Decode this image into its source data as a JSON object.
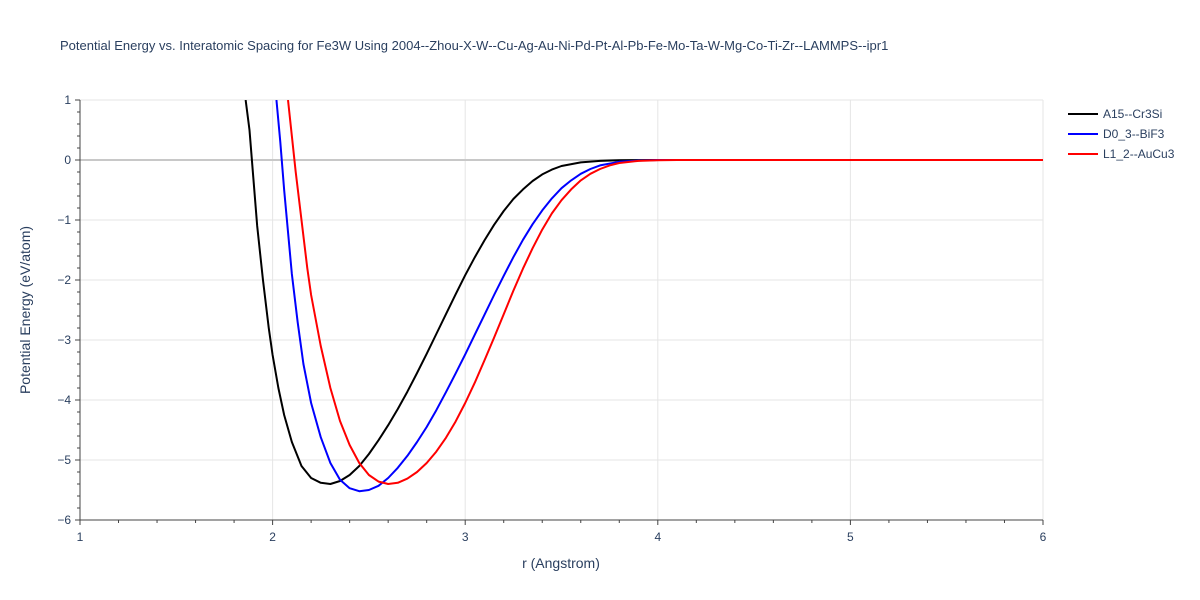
{
  "chart_data": {
    "type": "line",
    "title": "Potential Energy vs. Interatomic Spacing for Fe3W Using 2004--Zhou-X-W--Cu-Ag-Au-Ni-Pd-Pt-Al-Pb-Fe-Mo-Ta-W-Mg-Co-Ti-Zr--LAMMPS--ipr1",
    "xlabel": "r (Angstrom)",
    "ylabel": "Potential Energy (eV/atom)",
    "xlim": [
      1,
      6
    ],
    "ylim": [
      -6,
      1
    ],
    "xticks": [
      1,
      2,
      3,
      4,
      5,
      6
    ],
    "xtick_labels": [
      "1",
      "2",
      "3",
      "4",
      "5",
      "6"
    ],
    "yticks": [
      1,
      0,
      -1,
      -2,
      -3,
      -4,
      -5,
      -6
    ],
    "ytick_labels": [
      "1",
      "0",
      "−1",
      "−2",
      "−3",
      "−4",
      "−5",
      "−6"
    ],
    "grid": true,
    "legend_position": "top-right",
    "series": [
      {
        "name": "A15--Cr3Si",
        "color": "#000000",
        "x": [
          1.86,
          1.88,
          1.9,
          1.92,
          1.95,
          1.98,
          2.0,
          2.03,
          2.06,
          2.1,
          2.15,
          2.2,
          2.25,
          2.3,
          2.35,
          2.4,
          2.45,
          2.5,
          2.55,
          2.6,
          2.65,
          2.7,
          2.75,
          2.8,
          2.85,
          2.9,
          2.95,
          3.0,
          3.05,
          3.1,
          3.15,
          3.2,
          3.25,
          3.3,
          3.35,
          3.4,
          3.45,
          3.5,
          3.6,
          3.7,
          3.8,
          3.9,
          4.0,
          4.2,
          4.5,
          5.0,
          5.5,
          6.0
        ],
        "y": [
          1.0,
          0.5,
          -0.3,
          -1.1,
          -2.0,
          -2.8,
          -3.25,
          -3.8,
          -4.25,
          -4.7,
          -5.1,
          -5.3,
          -5.38,
          -5.4,
          -5.35,
          -5.25,
          -5.1,
          -4.9,
          -4.67,
          -4.42,
          -4.15,
          -3.86,
          -3.55,
          -3.23,
          -2.9,
          -2.57,
          -2.24,
          -1.92,
          -1.62,
          -1.34,
          -1.08,
          -0.85,
          -0.65,
          -0.49,
          -0.35,
          -0.24,
          -0.16,
          -0.1,
          -0.04,
          -0.015,
          -0.005,
          -0.002,
          0.0,
          0.0,
          0.0,
          0.0,
          0.0,
          0.0
        ]
      },
      {
        "name": "D0_3--BiF3",
        "color": "#0000ff",
        "x": [
          2.02,
          2.04,
          2.06,
          2.08,
          2.1,
          2.13,
          2.16,
          2.2,
          2.25,
          2.3,
          2.35,
          2.4,
          2.45,
          2.5,
          2.55,
          2.6,
          2.65,
          2.7,
          2.75,
          2.8,
          2.85,
          2.9,
          2.95,
          3.0,
          3.05,
          3.1,
          3.15,
          3.2,
          3.25,
          3.3,
          3.35,
          3.4,
          3.45,
          3.5,
          3.55,
          3.6,
          3.65,
          3.7,
          3.8,
          3.9,
          4.0,
          4.1,
          4.2,
          4.5,
          5.0,
          5.5,
          6.0
        ],
        "y": [
          1.0,
          0.3,
          -0.5,
          -1.2,
          -1.9,
          -2.7,
          -3.4,
          -4.05,
          -4.62,
          -5.05,
          -5.33,
          -5.47,
          -5.52,
          -5.5,
          -5.43,
          -5.3,
          -5.13,
          -4.93,
          -4.7,
          -4.45,
          -4.17,
          -3.87,
          -3.56,
          -3.24,
          -2.91,
          -2.58,
          -2.25,
          -1.93,
          -1.62,
          -1.33,
          -1.07,
          -0.84,
          -0.64,
          -0.47,
          -0.34,
          -0.23,
          -0.15,
          -0.09,
          -0.03,
          -0.01,
          0.0,
          0.0,
          0.0,
          0.0,
          0.0,
          0.0,
          0.0
        ]
      },
      {
        "name": "L1_2--AuCu3",
        "color": "#ff0000",
        "x": [
          2.08,
          2.1,
          2.12,
          2.15,
          2.18,
          2.2,
          2.25,
          2.3,
          2.35,
          2.4,
          2.45,
          2.5,
          2.55,
          2.6,
          2.65,
          2.7,
          2.75,
          2.8,
          2.85,
          2.9,
          2.95,
          3.0,
          3.05,
          3.1,
          3.15,
          3.2,
          3.25,
          3.3,
          3.35,
          3.4,
          3.45,
          3.5,
          3.55,
          3.6,
          3.65,
          3.7,
          3.75,
          3.8,
          3.9,
          4.0,
          4.1,
          4.2,
          4.5,
          5.0,
          5.5,
          6.0
        ],
        "y": [
          1.0,
          0.4,
          -0.2,
          -1.0,
          -1.8,
          -2.25,
          -3.1,
          -3.8,
          -4.35,
          -4.75,
          -5.05,
          -5.25,
          -5.36,
          -5.4,
          -5.38,
          -5.31,
          -5.2,
          -5.05,
          -4.86,
          -4.63,
          -4.36,
          -4.05,
          -3.71,
          -3.34,
          -2.96,
          -2.57,
          -2.18,
          -1.81,
          -1.47,
          -1.16,
          -0.89,
          -0.67,
          -0.49,
          -0.34,
          -0.23,
          -0.15,
          -0.09,
          -0.05,
          -0.015,
          -0.005,
          0.0,
          0.0,
          0.0,
          0.0,
          0.0,
          0.0
        ]
      }
    ]
  }
}
